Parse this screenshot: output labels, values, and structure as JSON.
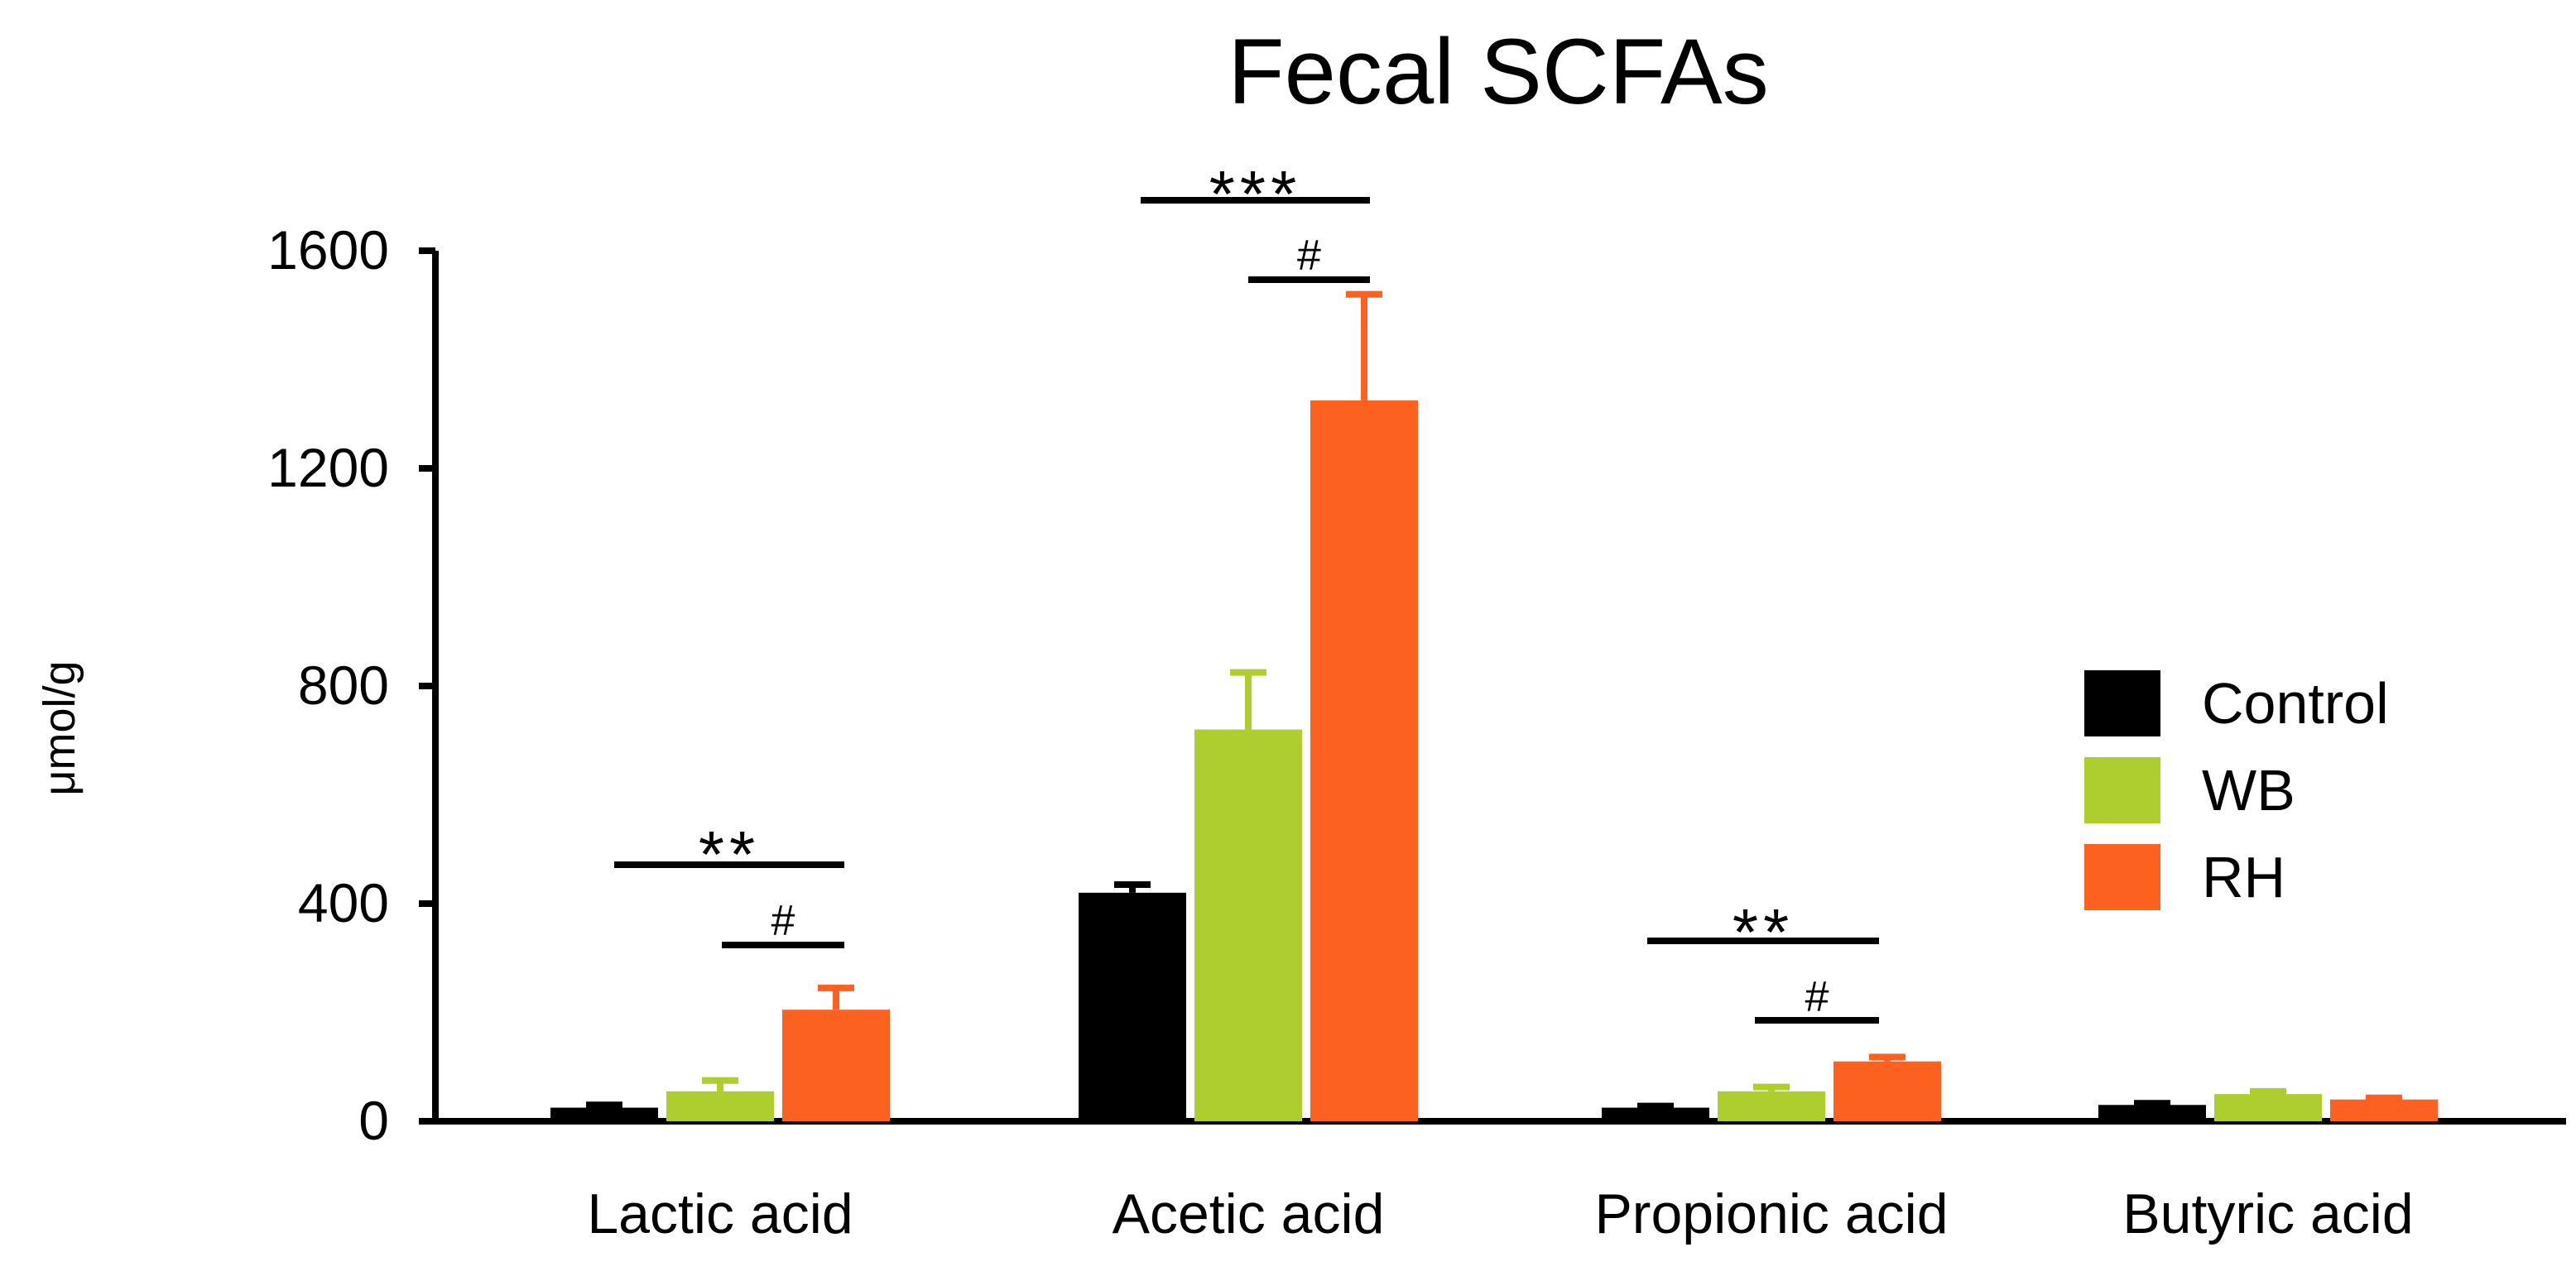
{
  "chart_data": {
    "type": "bar",
    "title": "Fecal SCFAs",
    "xlabel": "",
    "ylabel": "μmol/g",
    "ylim": [
      0,
      1600
    ],
    "yticks": [
      0,
      400,
      800,
      1200,
      1600
    ],
    "categories": [
      "Lactic acid",
      "Acetic acid",
      "Propionic acid",
      "Butyric acid"
    ],
    "series": [
      {
        "name": "Control",
        "color": "#000000",
        "values": [
          25,
          420,
          25,
          30
        ],
        "errors": [
          5,
          15,
          3,
          3
        ]
      },
      {
        "name": "WB",
        "color": "#aecd2e",
        "values": [
          55,
          720,
          55,
          50
        ],
        "errors": [
          20,
          105,
          8,
          5
        ]
      },
      {
        "name": "RH",
        "color": "#fd6120",
        "values": [
          205,
          1325,
          110,
          40
        ],
        "errors": [
          40,
          195,
          8,
          3
        ]
      }
    ],
    "legend_position": "right",
    "grid": false,
    "annotations": [
      {
        "category": "Lactic acid",
        "text": "**",
        "from_series": "Control",
        "to_series": "RH"
      },
      {
        "category": "Lactic acid",
        "text": "#",
        "from_series": "WB",
        "to_series": "RH"
      },
      {
        "category": "Acetic acid",
        "text": "***",
        "from_series": "Control",
        "to_series": "RH"
      },
      {
        "category": "Acetic acid",
        "text": "#",
        "from_series": "WB",
        "to_series": "RH"
      },
      {
        "category": "Propionic acid",
        "text": "**",
        "from_series": "Control",
        "to_series": "RH"
      },
      {
        "category": "Propionic acid",
        "text": "#",
        "from_series": "WB",
        "to_series": "RH"
      }
    ]
  }
}
